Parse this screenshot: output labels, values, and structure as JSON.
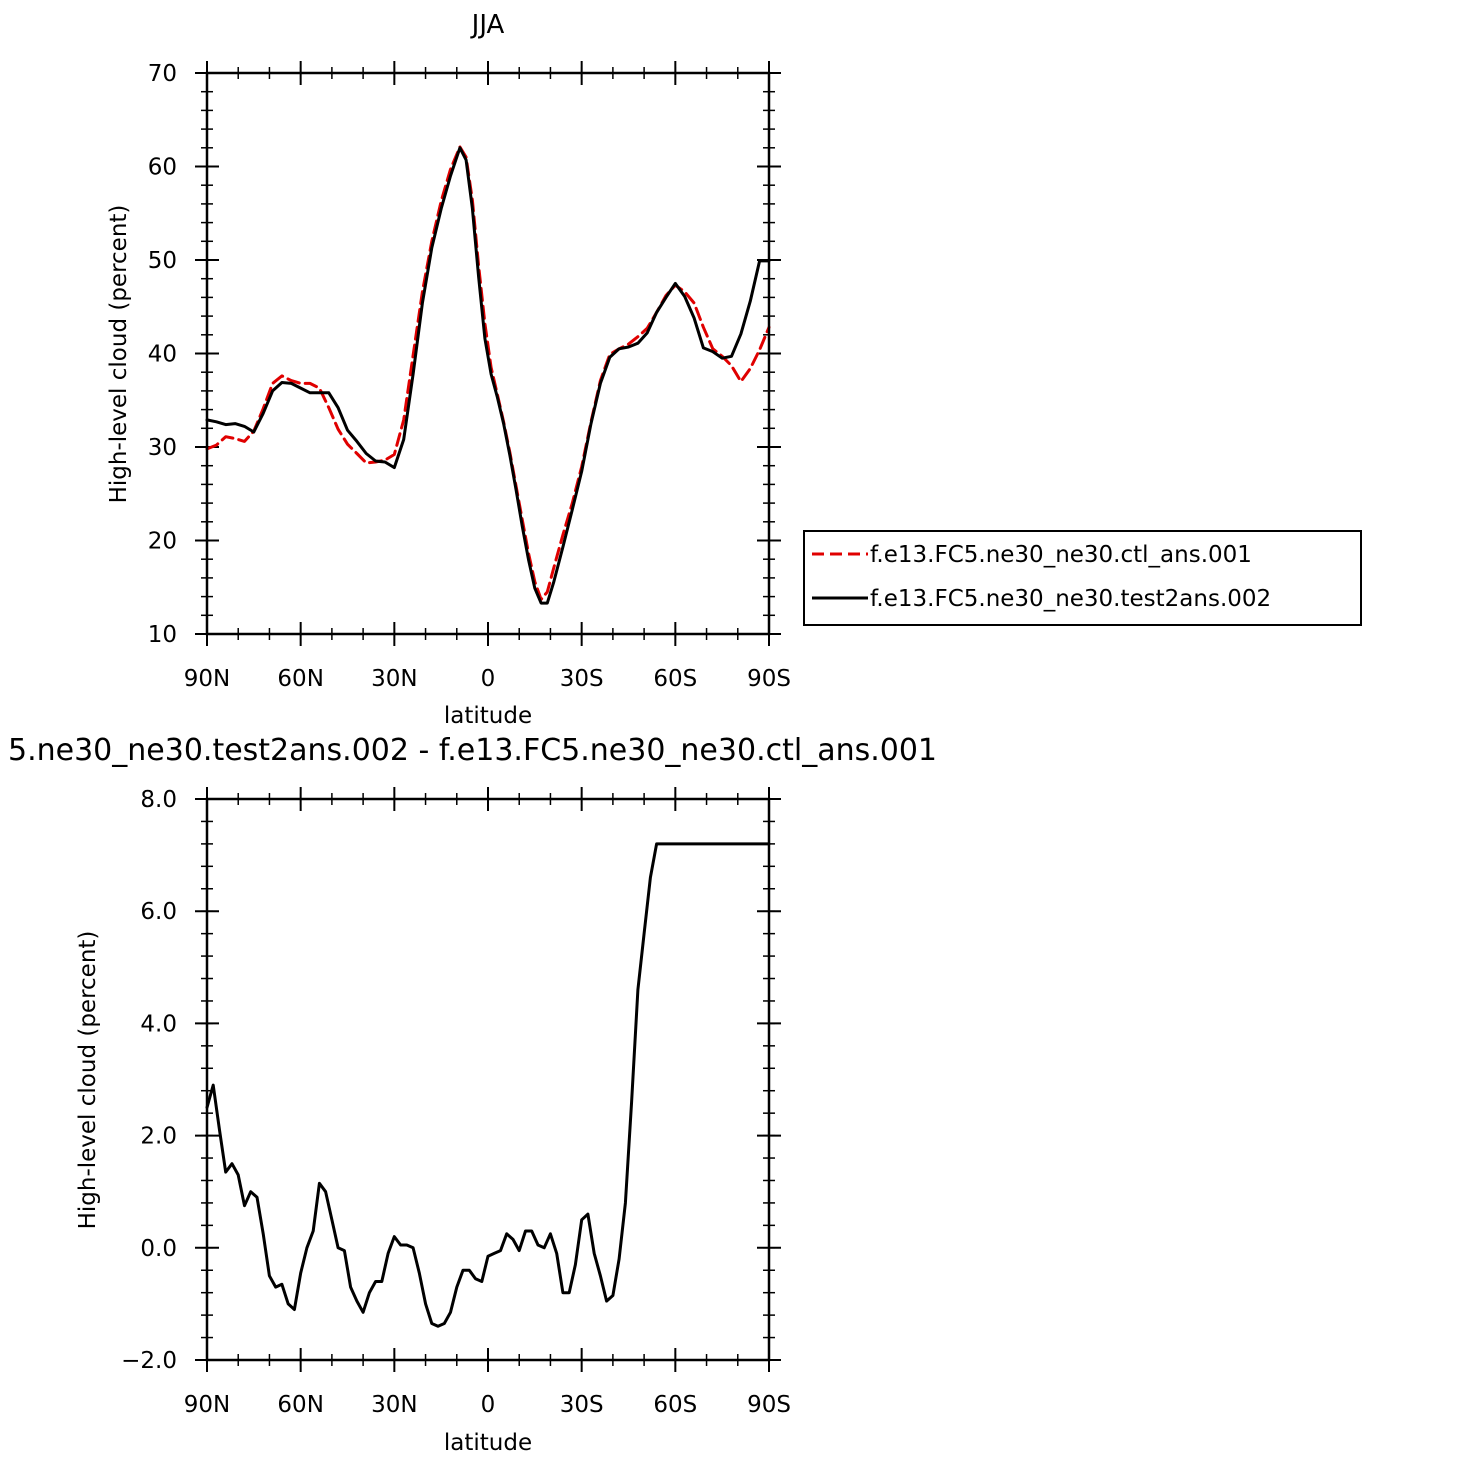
{
  "chart_data": [
    {
      "type": "line",
      "title": "JJA",
      "xlabel": "latitude",
      "ylabel": "High-level cloud (percent)",
      "xlim": [
        -90,
        90
      ],
      "ylim": [
        10,
        70
      ],
      "x_ticks": [
        {
          "value": -90,
          "label": "90N"
        },
        {
          "value": -60,
          "label": "60N"
        },
        {
          "value": -30,
          "label": "30N"
        },
        {
          "value": 0,
          "label": "0"
        },
        {
          "value": 30,
          "label": "30S"
        },
        {
          "value": 60,
          "label": "60S"
        },
        {
          "value": 90,
          "label": "90S"
        }
      ],
      "y_ticks": [
        {
          "value": 10,
          "label": "10"
        },
        {
          "value": 20,
          "label": "20"
        },
        {
          "value": 30,
          "label": "30"
        },
        {
          "value": 40,
          "label": "40"
        },
        {
          "value": 50,
          "label": "50"
        },
        {
          "value": 60,
          "label": "60"
        },
        {
          "value": 70,
          "label": "70"
        }
      ],
      "legend_position": "right",
      "series": [
        {
          "name": "f.e13.FC5.ne30_ne30.ctl_ans.001",
          "color": "#e00000",
          "dash": "dashed",
          "x": [
            -90,
            -87,
            -84,
            -81,
            -78,
            -75,
            -72,
            -69,
            -66,
            -63,
            -60,
            -57,
            -54,
            -51,
            -48,
            -45,
            -42,
            -39,
            -36,
            -33,
            -30,
            -27,
            -24,
            -21,
            -18,
            -15,
            -12,
            -9,
            -7,
            -5,
            -3,
            -1,
            1,
            3,
            5,
            7,
            9,
            11,
            13,
            15,
            17,
            19,
            21,
            24,
            27,
            30,
            33,
            36,
            39,
            42,
            45,
            48,
            51,
            54,
            57,
            60,
            63,
            66,
            69,
            72,
            75,
            78,
            81,
            84,
            87,
            90
          ],
          "values": [
            29.8,
            30.2,
            31.1,
            30.9,
            30.6,
            31.7,
            34.1,
            36.8,
            37.6,
            37.1,
            36.8,
            36.8,
            36.3,
            34.2,
            31.9,
            30.3,
            29.3,
            28.3,
            28.4,
            28.6,
            29.2,
            32.9,
            39.8,
            46.6,
            52.0,
            56.3,
            59.7,
            62.1,
            61.0,
            56.4,
            49.4,
            43.2,
            38.5,
            35.6,
            32.7,
            29.4,
            25.8,
            22.2,
            18.6,
            15.6,
            13.7,
            14.5,
            17.0,
            20.6,
            24.0,
            27.9,
            32.7,
            37.1,
            39.9,
            40.5,
            41.0,
            41.8,
            42.7,
            44.4,
            46.2,
            47.3,
            46.6,
            45.4,
            42.8,
            40.5,
            39.7,
            38.7,
            37.0,
            38.4,
            40.4,
            42.8
          ]
        },
        {
          "name": "f.e13.FC5.ne30_ne30.test2ans.002",
          "color": "#000000",
          "dash": "solid",
          "x": [
            -90,
            -87,
            -84,
            -81,
            -78,
            -75,
            -72,
            -69,
            -66,
            -63,
            -60,
            -57,
            -54,
            -51,
            -48,
            -45,
            -42,
            -39,
            -36,
            -33,
            -30,
            -27,
            -24,
            -21,
            -18,
            -15,
            -12,
            -9,
            -7,
            -5,
            -3,
            -1,
            1,
            3,
            5,
            7,
            9,
            11,
            13,
            15,
            17,
            19,
            21,
            24,
            27,
            30,
            33,
            36,
            39,
            42,
            45,
            48,
            51,
            54,
            57,
            60,
            63,
            66,
            69,
            72,
            75,
            78,
            81,
            84,
            87,
            90
          ],
          "values": [
            32.9,
            32.7,
            32.4,
            32.5,
            32.2,
            31.6,
            33.6,
            36.0,
            36.9,
            36.8,
            36.3,
            35.8,
            35.8,
            35.8,
            34.2,
            31.8,
            30.6,
            29.3,
            28.5,
            28.4,
            27.8,
            30.8,
            37.8,
            45.4,
            51.3,
            55.5,
            59.0,
            62.0,
            60.7,
            55.5,
            48.2,
            41.6,
            37.8,
            35.3,
            32.5,
            29.1,
            25.4,
            21.5,
            17.9,
            14.9,
            13.3,
            13.3,
            15.5,
            19.3,
            23.3,
            27.4,
            32.5,
            36.8,
            39.6,
            40.5,
            40.7,
            41.1,
            42.2,
            44.4,
            46.0,
            47.5,
            46.1,
            43.8,
            40.6,
            40.2,
            39.5,
            39.7,
            42.1,
            45.6,
            49.9,
            49.9
          ]
        }
      ]
    },
    {
      "type": "line",
      "title": "5.ne30_ne30.test2ans.002 - f.e13.FC5.ne30_ne30.ctl_ans.001",
      "xlabel": "latitude",
      "ylabel": "High-level cloud (percent)",
      "xlim": [
        -90,
        90
      ],
      "ylim": [
        -2.0,
        8.0
      ],
      "x_ticks": [
        {
          "value": -90,
          "label": "90N"
        },
        {
          "value": -60,
          "label": "60N"
        },
        {
          "value": -30,
          "label": "30N"
        },
        {
          "value": 0,
          "label": "0"
        },
        {
          "value": 30,
          "label": "30S"
        },
        {
          "value": 60,
          "label": "60S"
        },
        {
          "value": 90,
          "label": "90S"
        }
      ],
      "y_ticks": [
        {
          "value": -2.0,
          "label": "−2.0"
        },
        {
          "value": 0.0,
          "label": "0.0"
        },
        {
          "value": 2.0,
          "label": "2.0"
        },
        {
          "value": 4.0,
          "label": "4.0"
        },
        {
          "value": 6.0,
          "label": "6.0"
        },
        {
          "value": 8.0,
          "label": "8.0"
        }
      ],
      "series": [
        {
          "color": "#000000",
          "dash": "solid",
          "x": [
            -90,
            -88,
            -86,
            -84,
            -82,
            -80,
            -78,
            -76,
            -74,
            -72,
            -70,
            -68,
            -66,
            -64,
            -62,
            -60,
            -58,
            -56,
            -54,
            -52,
            -50,
            -48,
            -46,
            -44,
            -42,
            -40,
            -38,
            -36,
            -34,
            -32,
            -30,
            -28,
            -26,
            -24,
            -22,
            -20,
            -18,
            -16,
            -14,
            -12,
            -10,
            -8,
            -6,
            -4,
            -2,
            0,
            2,
            4,
            6,
            8,
            10,
            12,
            14,
            16,
            18,
            20,
            22,
            24,
            26,
            28,
            30,
            32,
            34,
            36,
            38,
            40,
            42,
            44,
            46,
            48,
            50,
            52,
            54,
            56,
            58,
            60,
            62,
            64,
            66,
            68,
            70,
            72,
            74,
            76,
            78,
            80,
            82,
            84,
            86,
            88,
            90
          ],
          "values": [
            2.5,
            2.9,
            2.1,
            1.35,
            1.5,
            1.3,
            0.75,
            1.0,
            0.9,
            0.25,
            -0.5,
            -0.7,
            -0.65,
            -1.0,
            -1.1,
            -0.45,
            0.0,
            0.3,
            1.15,
            1.0,
            0.5,
            0.0,
            -0.05,
            -0.7,
            -0.95,
            -1.15,
            -0.8,
            -0.6,
            -0.6,
            -0.1,
            0.2,
            0.05,
            0.05,
            0.0,
            -0.45,
            -1.0,
            -1.35,
            -1.4,
            -1.35,
            -1.15,
            -0.7,
            -0.4,
            -0.4,
            -0.55,
            -0.6,
            -0.15,
            -0.1,
            -0.05,
            0.25,
            0.15,
            -0.05,
            0.3,
            0.3,
            0.05,
            0.0,
            0.25,
            -0.1,
            -0.8,
            -0.8,
            -0.3,
            0.5,
            0.6,
            -0.1,
            -0.5,
            -0.95,
            -0.85,
            -0.2,
            0.8,
            2.6,
            4.6,
            5.6,
            6.6,
            7.2,
            7.2,
            7.2,
            7.2,
            7.2,
            7.2,
            7.2,
            7.2,
            7.2,
            7.2,
            7.2,
            7.2,
            7.2,
            7.2,
            7.2,
            7.2,
            7.2,
            7.2,
            7.2
          ]
        }
      ]
    }
  ]
}
